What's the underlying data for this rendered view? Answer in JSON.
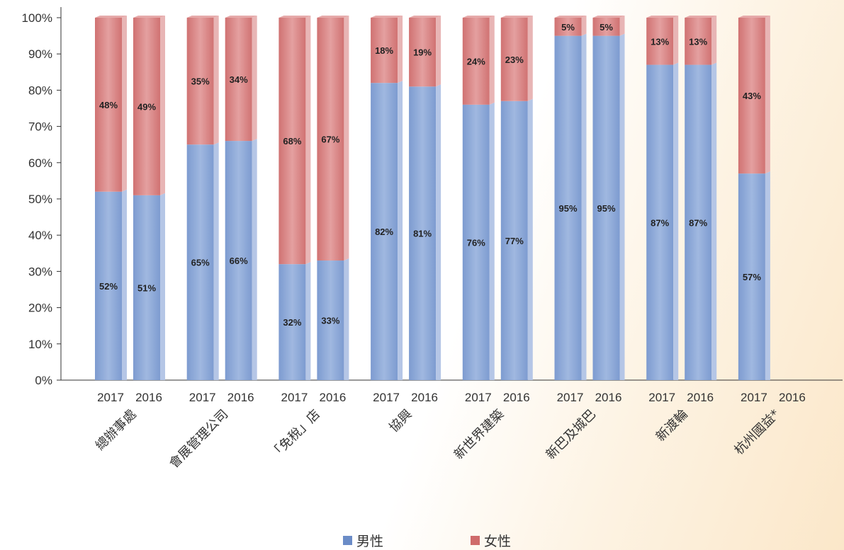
{
  "chart_data": {
    "type": "bar",
    "stacked": true,
    "percent": true,
    "title": "",
    "xlabel": "",
    "ylabel": "",
    "ylim": [
      0,
      100
    ],
    "yticks": [
      "0%",
      "10%",
      "20%",
      "30%",
      "40%",
      "50%",
      "60%",
      "70%",
      "80%",
      "90%",
      "100%"
    ],
    "groups": [
      {
        "name": "總辦事處",
        "bars": [
          {
            "year": "2017",
            "male": 52,
            "female": 48
          },
          {
            "year": "2016",
            "male": 51,
            "female": 49
          }
        ]
      },
      {
        "name": "會展管理公司",
        "bars": [
          {
            "year": "2017",
            "male": 65,
            "female": 35
          },
          {
            "year": "2016",
            "male": 66,
            "female": 34
          }
        ]
      },
      {
        "name": "「免稅」店",
        "bars": [
          {
            "year": "2017",
            "male": 32,
            "female": 68
          },
          {
            "year": "2016",
            "male": 33,
            "female": 67
          }
        ]
      },
      {
        "name": "協興",
        "bars": [
          {
            "year": "2017",
            "male": 82,
            "female": 18
          },
          {
            "year": "2016",
            "male": 81,
            "female": 19
          }
        ]
      },
      {
        "name": "新世界建築",
        "bars": [
          {
            "year": "2017",
            "male": 76,
            "female": 24
          },
          {
            "year": "2016",
            "male": 77,
            "female": 23
          }
        ]
      },
      {
        "name": "新巴及城巴",
        "bars": [
          {
            "year": "2017",
            "male": 95,
            "female": 5
          },
          {
            "year": "2016",
            "male": 95,
            "female": 5
          }
        ]
      },
      {
        "name": "新渡輪",
        "bars": [
          {
            "year": "2017",
            "male": 87,
            "female": 13
          },
          {
            "year": "2016",
            "male": 87,
            "female": 13
          }
        ]
      },
      {
        "name": "杭州國益*",
        "bars": [
          {
            "year": "2017",
            "male": 57,
            "female": 43
          },
          {
            "year": "2016",
            "male": null,
            "female": null
          }
        ]
      }
    ],
    "series": [
      {
        "name": "男性",
        "key": "male",
        "color": "#6b8cc7"
      },
      {
        "name": "女性",
        "key": "female",
        "color": "#cf6b6b"
      }
    ],
    "legend_position": "bottom-center",
    "grid": false
  }
}
